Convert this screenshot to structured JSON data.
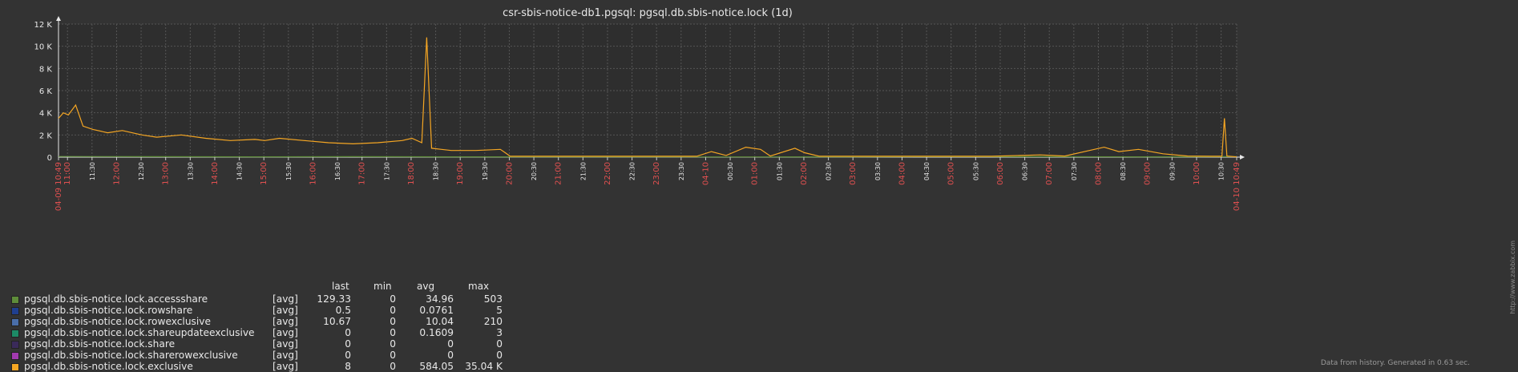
{
  "chart_data": {
    "type": "line",
    "title": "csr-sbis-notice-db1.pgsql: pgsql.db.sbis-notice.lock (1d)",
    "ylim": [
      0,
      12000
    ],
    "y_ticks": [
      "0",
      "2 K",
      "4 K",
      "6 K",
      "8 K",
      "10 K",
      "12 K"
    ],
    "grid": true,
    "x_tick_labels": [
      "04-09 10:49",
      "11:00",
      "11:30",
      "12:00",
      "12:30",
      "13:00",
      "13:30",
      "14:00",
      "14:30",
      "15:00",
      "15:30",
      "16:00",
      "16:30",
      "17:00",
      "17:30",
      "18:00",
      "18:30",
      "19:00",
      "19:30",
      "20:00",
      "20:30",
      "21:00",
      "21:30",
      "22:00",
      "22:30",
      "23:00",
      "23:30",
      "04-10",
      "00:30",
      "01:00",
      "01:30",
      "02:00",
      "02:30",
      "03:00",
      "03:30",
      "04:00",
      "04:30",
      "05:00",
      "05:30",
      "06:00",
      "06:30",
      "07:00",
      "07:30",
      "08:00",
      "08:30",
      "09:00",
      "09:30",
      "10:00",
      "10:30",
      "04-10 10:49"
    ],
    "x_tick_highlight": [
      true,
      true,
      false,
      true,
      false,
      true,
      false,
      true,
      false,
      true,
      false,
      true,
      false,
      true,
      false,
      true,
      false,
      true,
      false,
      true,
      false,
      true,
      false,
      true,
      false,
      true,
      false,
      true,
      false,
      true,
      false,
      true,
      false,
      true,
      false,
      true,
      false,
      true,
      false,
      true,
      false,
      true,
      false,
      true,
      false,
      true,
      false,
      true,
      false,
      true
    ],
    "x_tick_hours": [
      0,
      0.183,
      0.683,
      1.183,
      1.683,
      2.183,
      2.683,
      3.183,
      3.683,
      4.183,
      4.683,
      5.183,
      5.683,
      6.183,
      6.683,
      7.183,
      7.683,
      8.183,
      8.683,
      9.183,
      9.683,
      10.183,
      10.683,
      11.183,
      11.683,
      12.183,
      12.683,
      13.183,
      13.683,
      14.183,
      14.683,
      15.183,
      15.683,
      16.183,
      16.683,
      17.183,
      17.683,
      18.183,
      18.683,
      19.183,
      19.683,
      20.183,
      20.683,
      21.183,
      21.683,
      22.183,
      22.683,
      23.183,
      23.683,
      24
    ],
    "series": [
      {
        "name": "pgsql.db.sbis-notice.lock.accessshare",
        "color": "#5e8c3a",
        "fn": "[avg]",
        "last": "129.33",
        "min": "0",
        "avg": "34.96",
        "max": "503",
        "x": [
          0,
          2,
          4,
          6,
          8,
          10,
          12,
          14,
          16,
          18,
          20,
          22,
          24
        ],
        "y": [
          60,
          40,
          30,
          40,
          30,
          30,
          20,
          20,
          30,
          40,
          40,
          30,
          50
        ]
      },
      {
        "name": "pgsql.db.sbis-notice.lock.rowshare",
        "color": "#1f3f8f",
        "fn": "[avg]",
        "last": "0.5",
        "min": "0",
        "avg": "0.0761",
        "max": "5"
      },
      {
        "name": "pgsql.db.sbis-notice.lock.rowexclusive",
        "color": "#4a6ea9",
        "fn": "[avg]",
        "last": "10.67",
        "min": "0",
        "avg": "10.04",
        "max": "210"
      },
      {
        "name": "pgsql.db.sbis-notice.lock.shareupdateexclusive",
        "color": "#1d8a66",
        "fn": "[avg]",
        "last": "0",
        "min": "0",
        "avg": "0.1609",
        "max": "3"
      },
      {
        "name": "pgsql.db.sbis-notice.lock.share",
        "color": "#3a2a5a",
        "fn": "[avg]",
        "last": "0",
        "min": "0",
        "avg": "0",
        "max": "0"
      },
      {
        "name": "pgsql.db.sbis-notice.lock.sharerowexclusive",
        "color": "#a23ab0",
        "fn": "[avg]",
        "last": "0",
        "min": "0",
        "avg": "0",
        "max": "0"
      },
      {
        "name": "pgsql.db.sbis-notice.lock.exclusive",
        "color": "#f5a623",
        "fn": "[avg]",
        "last": "8",
        "min": "0",
        "avg": "584.05",
        "max": "35.04 K",
        "x": [
          0,
          0.1,
          0.2,
          0.35,
          0.5,
          0.7,
          1.0,
          1.3,
          1.7,
          2.0,
          2.5,
          3.0,
          3.5,
          4.0,
          4.2,
          4.5,
          5.0,
          5.5,
          6.0,
          6.5,
          7.0,
          7.2,
          7.4,
          7.5,
          7.6,
          7.8,
          8.0,
          8.5,
          9.0,
          9.1,
          9.2,
          10.0,
          11.0,
          12.0,
          13.0,
          13.3,
          13.6,
          14.0,
          14.3,
          14.5,
          15.0,
          15.2,
          15.5,
          16.0,
          17.0,
          18.0,
          19.0,
          20.0,
          20.5,
          21.0,
          21.3,
          21.6,
          22.0,
          22.5,
          23.0,
          23.5,
          23.7,
          23.75,
          23.8,
          24.0
        ],
        "y": [
          3500,
          4000,
          3800,
          4700,
          2800,
          2500,
          2200,
          2400,
          2000,
          1800,
          2000,
          1700,
          1500,
          1600,
          1500,
          1700,
          1500,
          1300,
          1200,
          1300,
          1500,
          1700,
          1300,
          10800,
          800,
          700,
          600,
          600,
          700,
          400,
          80,
          80,
          80,
          80,
          80,
          500,
          150,
          900,
          700,
          100,
          800,
          400,
          80,
          80,
          80,
          80,
          80,
          200,
          100,
          600,
          900,
          500,
          700,
          300,
          100,
          80,
          80,
          3500,
          100,
          20
        ]
      }
    ]
  },
  "legend_headers": {
    "last": "last",
    "min": "min",
    "avg": "avg",
    "max": "max"
  },
  "footer": "Data from history. Generated in 0.63 sec.",
  "watermark": "http://www.zabbix.com",
  "colors": {
    "background": "#333333",
    "grid": "#555555",
    "axis": "#e8e8e8",
    "highlight_tick": "#e05050"
  }
}
